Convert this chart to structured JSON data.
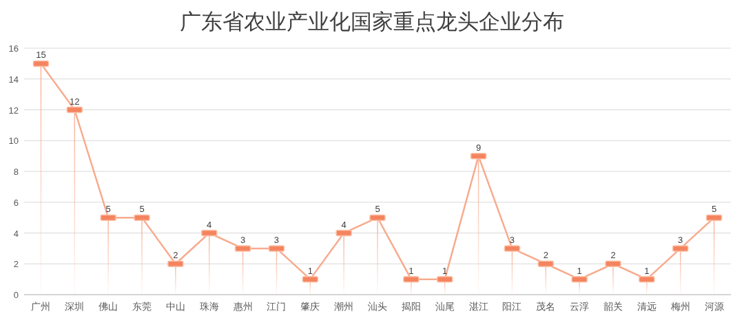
{
  "chart_data": {
    "type": "line",
    "title": "广东省农业产业化国家重点龙头企业分布",
    "categories": [
      "广州",
      "深圳",
      "佛山",
      "东莞",
      "中山",
      "珠海",
      "惠州",
      "江门",
      "肇庆",
      "潮州",
      "汕头",
      "揭阳",
      "汕尾",
      "湛江",
      "阳江",
      "茂名",
      "云浮",
      "韶关",
      "清远",
      "梅州",
      "河源"
    ],
    "series": [
      {
        "color": "#f7ab8e",
        "marker": "none",
        "data_labels": false,
        "values": [
          15,
          12,
          5,
          5,
          2,
          4,
          3,
          3,
          1,
          4,
          5,
          1,
          1,
          9,
          3,
          2,
          1,
          2,
          1,
          3,
          5
        ]
      },
      {
        "type": "lollipop",
        "color": "#f4845f",
        "values": [
          15,
          12,
          5,
          5,
          2,
          4,
          3,
          3,
          1,
          4,
          5,
          1,
          1,
          9,
          3,
          2,
          1,
          2,
          1,
          3,
          5
        ]
      }
    ],
    "ylim": [
      0,
      16
    ],
    "yticks": [
      0,
      2,
      4,
      6,
      8,
      10,
      12,
      14,
      16
    ],
    "grid": "y",
    "data_labels": true,
    "marker": "square"
  }
}
